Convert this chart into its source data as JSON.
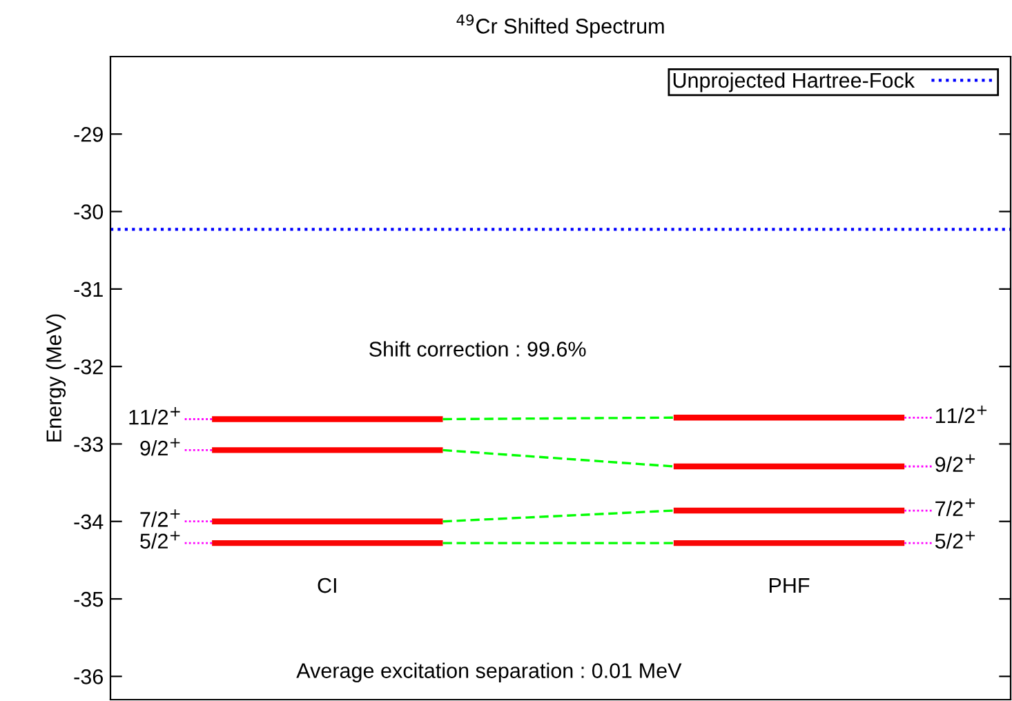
{
  "chart_data": {
    "type": "line",
    "title": "$^{49}$Cr Shifted Spectrum",
    "ylabel": "Energy (MeV)",
    "categories": [
      null,
      null,
      null,
      null
    ],
    "ylim": [
      -36.3,
      -28
    ],
    "yticks": [
      -36,
      -35,
      -34,
      -33,
      -32,
      -31,
      -30,
      -29
    ],
    "grid": false,
    "legend": "top right",
    "marker": "none",
    "series": [
      {
        "name": "11/2$^{+}$",
        "color": "#ff0000",
        "values": [
          -32.68,
          -32.68,
          null,
          null
        ]
      },
      {
        "color": "#00ff00",
        "line_style": "dashed",
        "values": [
          null,
          -32.68,
          -32.66,
          null
        ]
      },
      {
        "name": "11/2$^{+}$",
        "color": "#fe0101",
        "values": [
          null,
          null,
          -32.66,
          -32.66
        ]
      },
      {
        "name": "9/2$^{+}$",
        "color": "#fd0202",
        "values": [
          -33.08,
          -33.08,
          null,
          null
        ]
      },
      {
        "color": "#01fe01",
        "line_style": "dashed",
        "values": [
          null,
          -33.08,
          -33.29,
          null
        ]
      },
      {
        "name": "9/2$^{+}$",
        "color": "#fc0303",
        "values": [
          null,
          null,
          -33.29,
          -33.29
        ]
      },
      {
        "name": "7/2$^{+}$",
        "color": "#fb0404",
        "values": [
          -34.0,
          -34.0,
          null,
          null
        ]
      },
      {
        "color": "#02fd02",
        "line_style": "dashed",
        "values": [
          null,
          -34.0,
          -33.86,
          null
        ]
      },
      {
        "name": "7/2$^{+}$",
        "color": "#fa0505",
        "values": [
          null,
          null,
          -33.86,
          -33.86
        ]
      },
      {
        "name": "5/2$^{+}$",
        "color": "#f90606",
        "values": [
          -34.28,
          -34.28,
          null,
          null
        ]
      },
      {
        "color": "#03fc03",
        "line_style": "dashed",
        "values": [
          null,
          -34.28,
          -34.28,
          null
        ]
      },
      {
        "name": "5/2$^{+}$",
        "color": "#f80707",
        "values": [
          null,
          null,
          -34.28,
          -34.28
        ]
      }
    ],
    "ref_lines": [
      {
        "axis": "y",
        "value": -30.23,
        "label": "Unprojected Hartree-Fock",
        "color": "#0000ff",
        "line_style": "dotted"
      }
    ],
    "annotations": [
      "CI",
      "PHF",
      "Shift correction : 99.6%",
      "Average excitation separation : 0.01 MeV"
    ]
  }
}
